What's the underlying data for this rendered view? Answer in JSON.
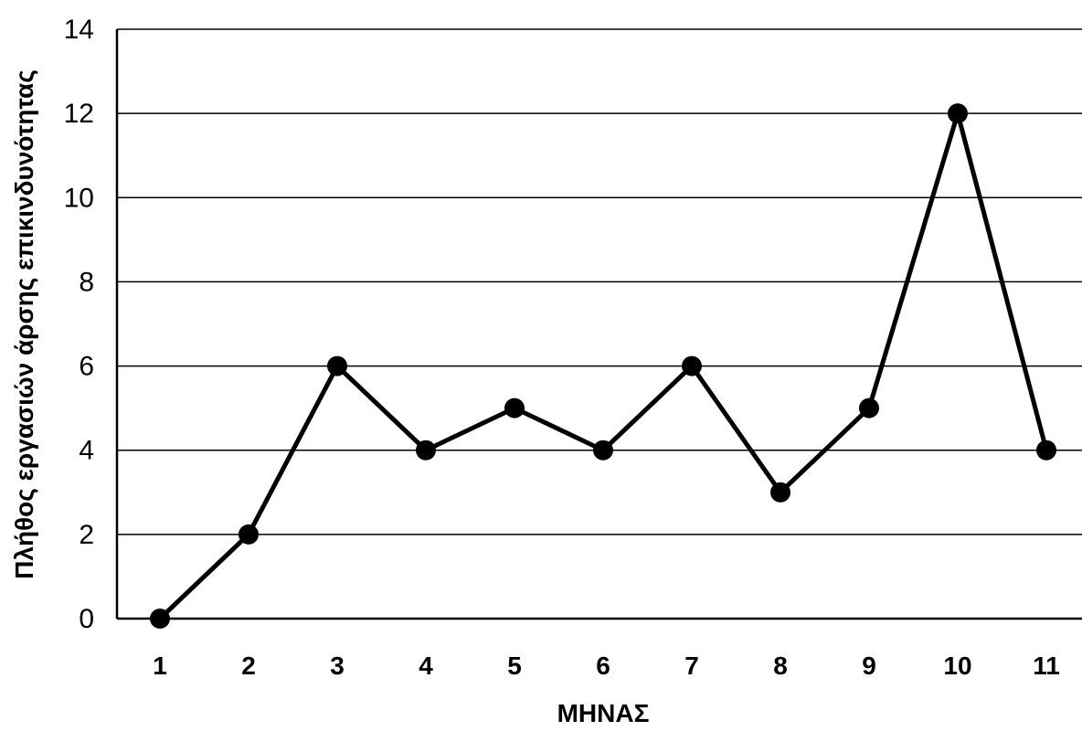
{
  "chart_data": {
    "type": "line",
    "title": "",
    "xlabel": "ΜΗΝΑΣ",
    "ylabel": "Πλήθος εργασιών  άρσης επικινδυνότητας",
    "x": [
      1,
      2,
      3,
      4,
      5,
      6,
      7,
      8,
      9,
      10,
      11
    ],
    "series": [
      {
        "values": [
          0,
          2,
          6,
          4,
          5,
          4,
          6,
          3,
          5,
          12,
          4
        ]
      }
    ],
    "ylim": [
      0,
      14
    ],
    "yticks": [
      0,
      2,
      4,
      6,
      8,
      10,
      12,
      14
    ],
    "grid": true,
    "colors": {
      "line": "#000000",
      "marker": "#000000",
      "grid": "#000000"
    }
  }
}
